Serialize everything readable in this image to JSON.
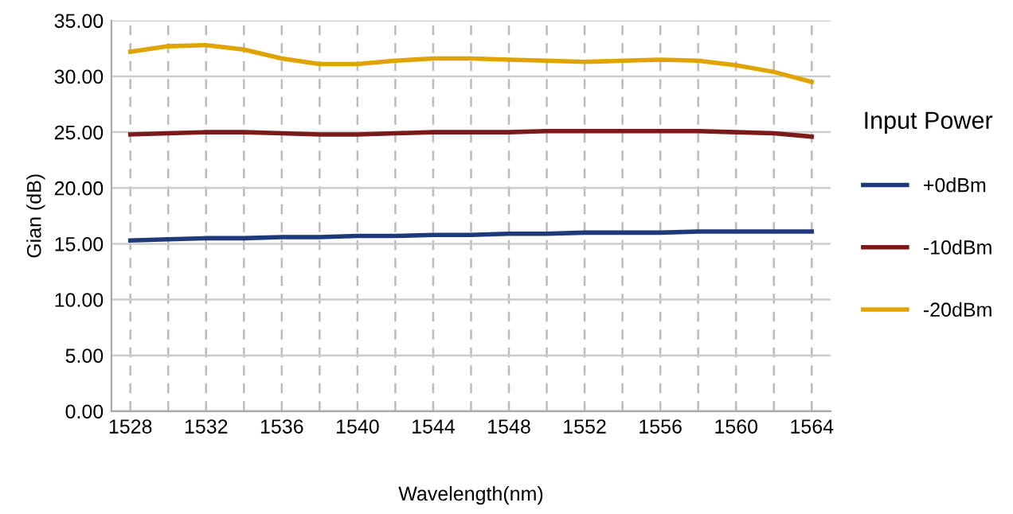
{
  "chart_data": {
    "type": "line",
    "xlabel": "Wavelength(nm)",
    "ylabel": "Gian (dB)",
    "legend_title": "Input Power",
    "x": [
      1528,
      1530,
      1532,
      1534,
      1536,
      1538,
      1540,
      1542,
      1544,
      1546,
      1548,
      1550,
      1552,
      1554,
      1556,
      1558,
      1560,
      1562,
      1564
    ],
    "series": [
      {
        "name": "+0dBm",
        "color": "#1f3a7a",
        "values": [
          15.3,
          15.4,
          15.5,
          15.5,
          15.6,
          15.6,
          15.7,
          15.7,
          15.8,
          15.8,
          15.9,
          15.9,
          16.0,
          16.0,
          16.0,
          16.1,
          16.1,
          16.1,
          16.1
        ]
      },
      {
        "name": "-10dBm",
        "color": "#7b1a1a",
        "values": [
          24.8,
          24.9,
          25.0,
          25.0,
          24.9,
          24.8,
          24.8,
          24.9,
          25.0,
          25.0,
          25.0,
          25.1,
          25.1,
          25.1,
          25.1,
          25.1,
          25.0,
          24.9,
          24.6
        ]
      },
      {
        "name": "-20dBm",
        "color": "#e0a400",
        "values": [
          32.2,
          32.7,
          32.8,
          32.4,
          31.6,
          31.1,
          31.1,
          31.4,
          31.6,
          31.6,
          31.5,
          31.4,
          31.3,
          31.4,
          31.5,
          31.4,
          31.0,
          30.4,
          29.5
        ]
      }
    ],
    "xlim": [
      1527,
      1565
    ],
    "xticks": [
      1528,
      {
        "value": 1530,
        "label": null
      },
      1532,
      {
        "value": 1534,
        "label": null
      },
      1536,
      {
        "value": 1538,
        "label": null
      },
      1540,
      {
        "value": 1542,
        "label": null
      },
      1544,
      {
        "value": 1546,
        "label": null
      },
      1548,
      {
        "value": 1550,
        "label": null
      },
      1552,
      {
        "value": 1554,
        "label": null
      },
      1556,
      {
        "value": 1558,
        "label": null
      },
      1560,
      {
        "value": 1562,
        "label": null
      },
      1564
    ],
    "ylim": [
      0,
      35
    ],
    "yticks": [
      {
        "value": 0,
        "label": "0.00"
      },
      {
        "value": 5,
        "label": "5.00"
      },
      {
        "value": 10,
        "label": "10.00"
      },
      {
        "value": 15,
        "label": "15.00"
      },
      {
        "value": 20,
        "label": "20.00"
      },
      {
        "value": 25,
        "label": "25.00"
      },
      {
        "value": 30,
        "label": "30.00"
      },
      {
        "value": 35,
        "label": "35.00"
      }
    ],
    "grid": true,
    "legend": "right",
    "marker": "none",
    "line_style": "solid"
  }
}
